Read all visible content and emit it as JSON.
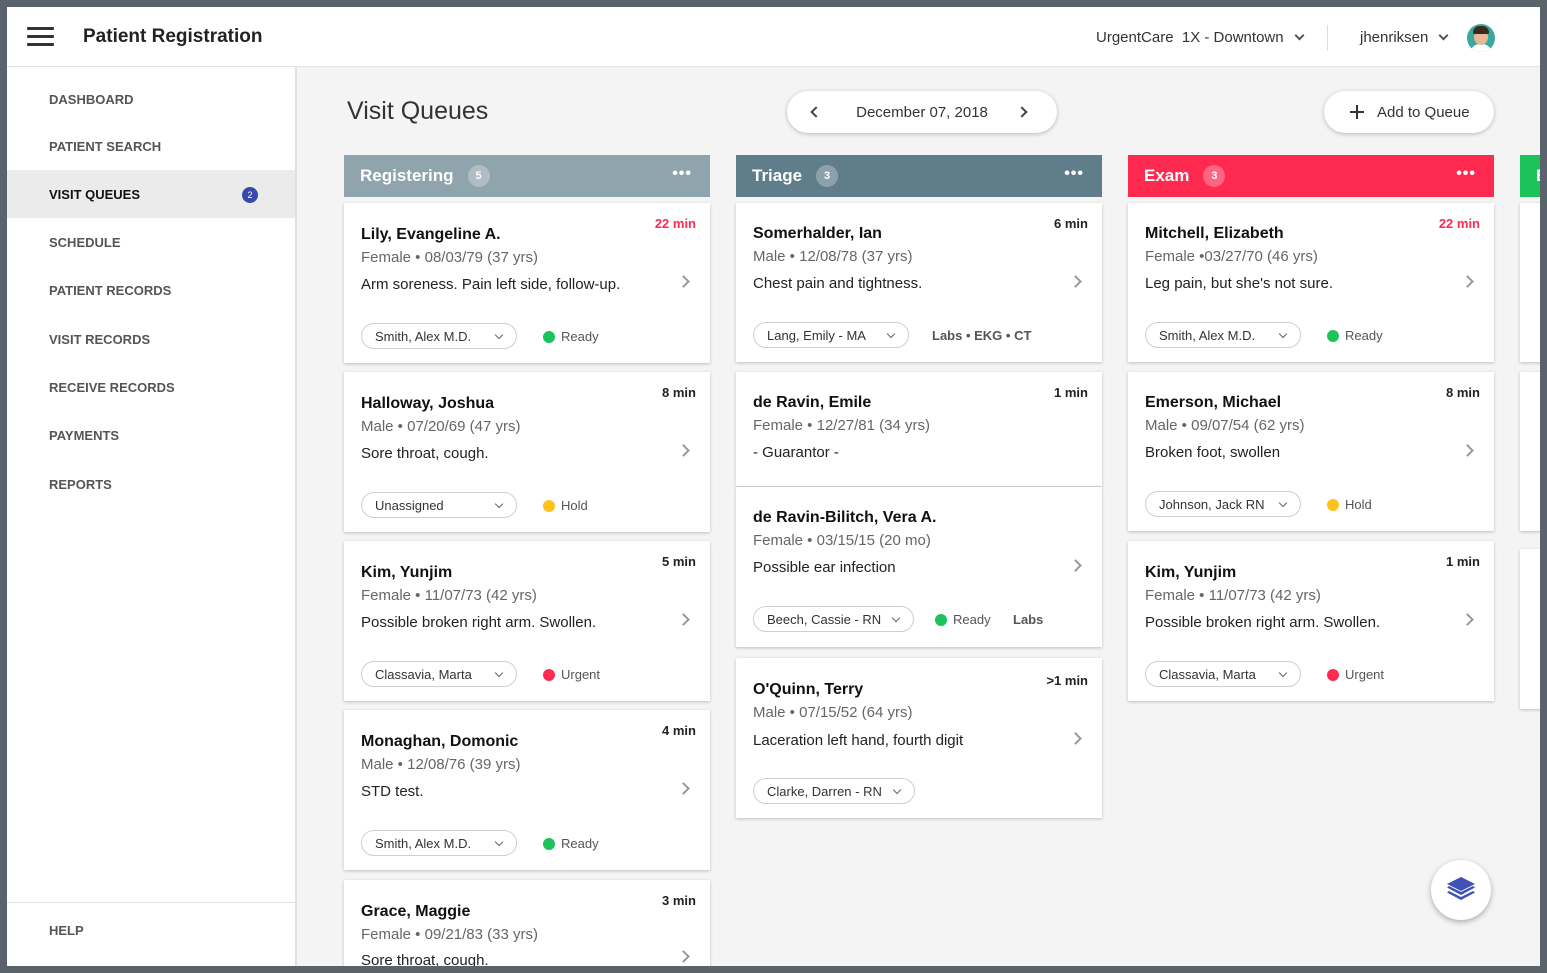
{
  "header": {
    "title": "Patient Registration",
    "location": "UrgentCare  1X - Downtown",
    "user": "jhenriksen"
  },
  "sidebar": {
    "items": [
      {
        "label": "DASHBOARD"
      },
      {
        "label": "PATIENT SEARCH"
      },
      {
        "label": "VISIT QUEUES",
        "badge": "2"
      },
      {
        "label": "SCHEDULE"
      },
      {
        "label": "PATIENT RECORDS"
      },
      {
        "label": "VISIT RECORDS"
      },
      {
        "label": "RECEIVE RECORDS"
      },
      {
        "label": "PAYMENTS"
      },
      {
        "label": "REPORTS"
      }
    ],
    "help": "HELP"
  },
  "main": {
    "title": "Visit Queues",
    "date": "December 07, 2018",
    "add_label": "Add to Queue"
  },
  "colors": {
    "registering": "#90a4ae",
    "triage": "#607d8b",
    "exam": "#ff2a4f",
    "ready": "#1cc35a",
    "hold": "#fdc21b",
    "urgent": "#ff2a4f"
  },
  "queues": {
    "registering": {
      "label": "Registering",
      "count": "5",
      "cards": [
        {
          "name": "Lily, Evangeline A.",
          "demo": "Female • 08/03/79 (37 yrs)",
          "reason": "Arm soreness. Pain left side, follow-up.",
          "time": "22 min",
          "assignee": "Smith, Alex M.D.",
          "status": "Ready"
        },
        {
          "name": "Halloway, Joshua",
          "demo": "Male • 07/20/69 (47 yrs)",
          "reason": "Sore throat, cough.",
          "time": "8 min",
          "assignee": "Unassigned",
          "status": "Hold"
        },
        {
          "name": "Kim, Yunjim",
          "demo": "Female • 11/07/73 (42 yrs)",
          "reason": "Possible broken right arm. Swollen.",
          "time": "5 min",
          "assignee": "Classavia, Marta",
          "status": "Urgent"
        },
        {
          "name": "Monaghan, Domonic",
          "demo": "Male • 12/08/76 (39 yrs)",
          "reason": "STD test.",
          "time": "4 min",
          "assignee": "Smith, Alex M.D.",
          "status": "Ready"
        },
        {
          "name": "Grace, Maggie",
          "demo": "Female • 09/21/83 (33 yrs)",
          "reason": "Sore throat, cough.",
          "time": "3 min"
        }
      ]
    },
    "triage": {
      "label": "Triage",
      "count": "3",
      "cards": [
        {
          "name": "Somerhalder, Ian",
          "demo": "Male • 12/08/78 (37 yrs)",
          "reason": "Chest pain and tightness.",
          "time": "6 min",
          "assignee": "Lang, Emily - MA",
          "extra": "Labs • EKG • CT"
        },
        {
          "name": "de Ravin, Emile",
          "demo": "Female • 12/27/81 (34 yrs)",
          "reason": "- Guarantor -",
          "time": "1 min"
        },
        {
          "name": "de Ravin-Bilitch, Vera A.",
          "demo": "Female • 03/15/15 (20 mo)",
          "reason": "Possible ear infection",
          "assignee": "Beech, Cassie - RN",
          "status": "Ready",
          "extra": "Labs"
        },
        {
          "name": "O'Quinn, Terry",
          "demo": "Male • 07/15/52 (64 yrs)",
          "reason": "Laceration left hand, fourth digit",
          "time": ">1 min",
          "assignee": "Clarke, Darren - RN"
        }
      ]
    },
    "exam": {
      "label": "Exam",
      "count": "3",
      "cards": [
        {
          "name": "Mitchell, Elizabeth",
          "demo": "Female •03/27/70 (46 yrs)",
          "reason": "Leg pain, but she's not sure.",
          "time": "22 min",
          "assignee": "Smith, Alex M.D.",
          "status": "Ready"
        },
        {
          "name": "Emerson, Michael",
          "demo": "Male • 09/07/54 (62 yrs)",
          "reason": "Broken foot, swollen",
          "time": "8 min",
          "assignee": "Johnson, Jack RN",
          "status": "Hold"
        },
        {
          "name": "Kim, Yunjim",
          "demo": "Female • 11/07/73 (42 yrs)",
          "reason": "Possible broken right arm. Swollen.",
          "time": "1 min",
          "assignee": "Classavia, Marta",
          "status": "Urgent"
        }
      ]
    },
    "next": {
      "label": "E"
    }
  }
}
